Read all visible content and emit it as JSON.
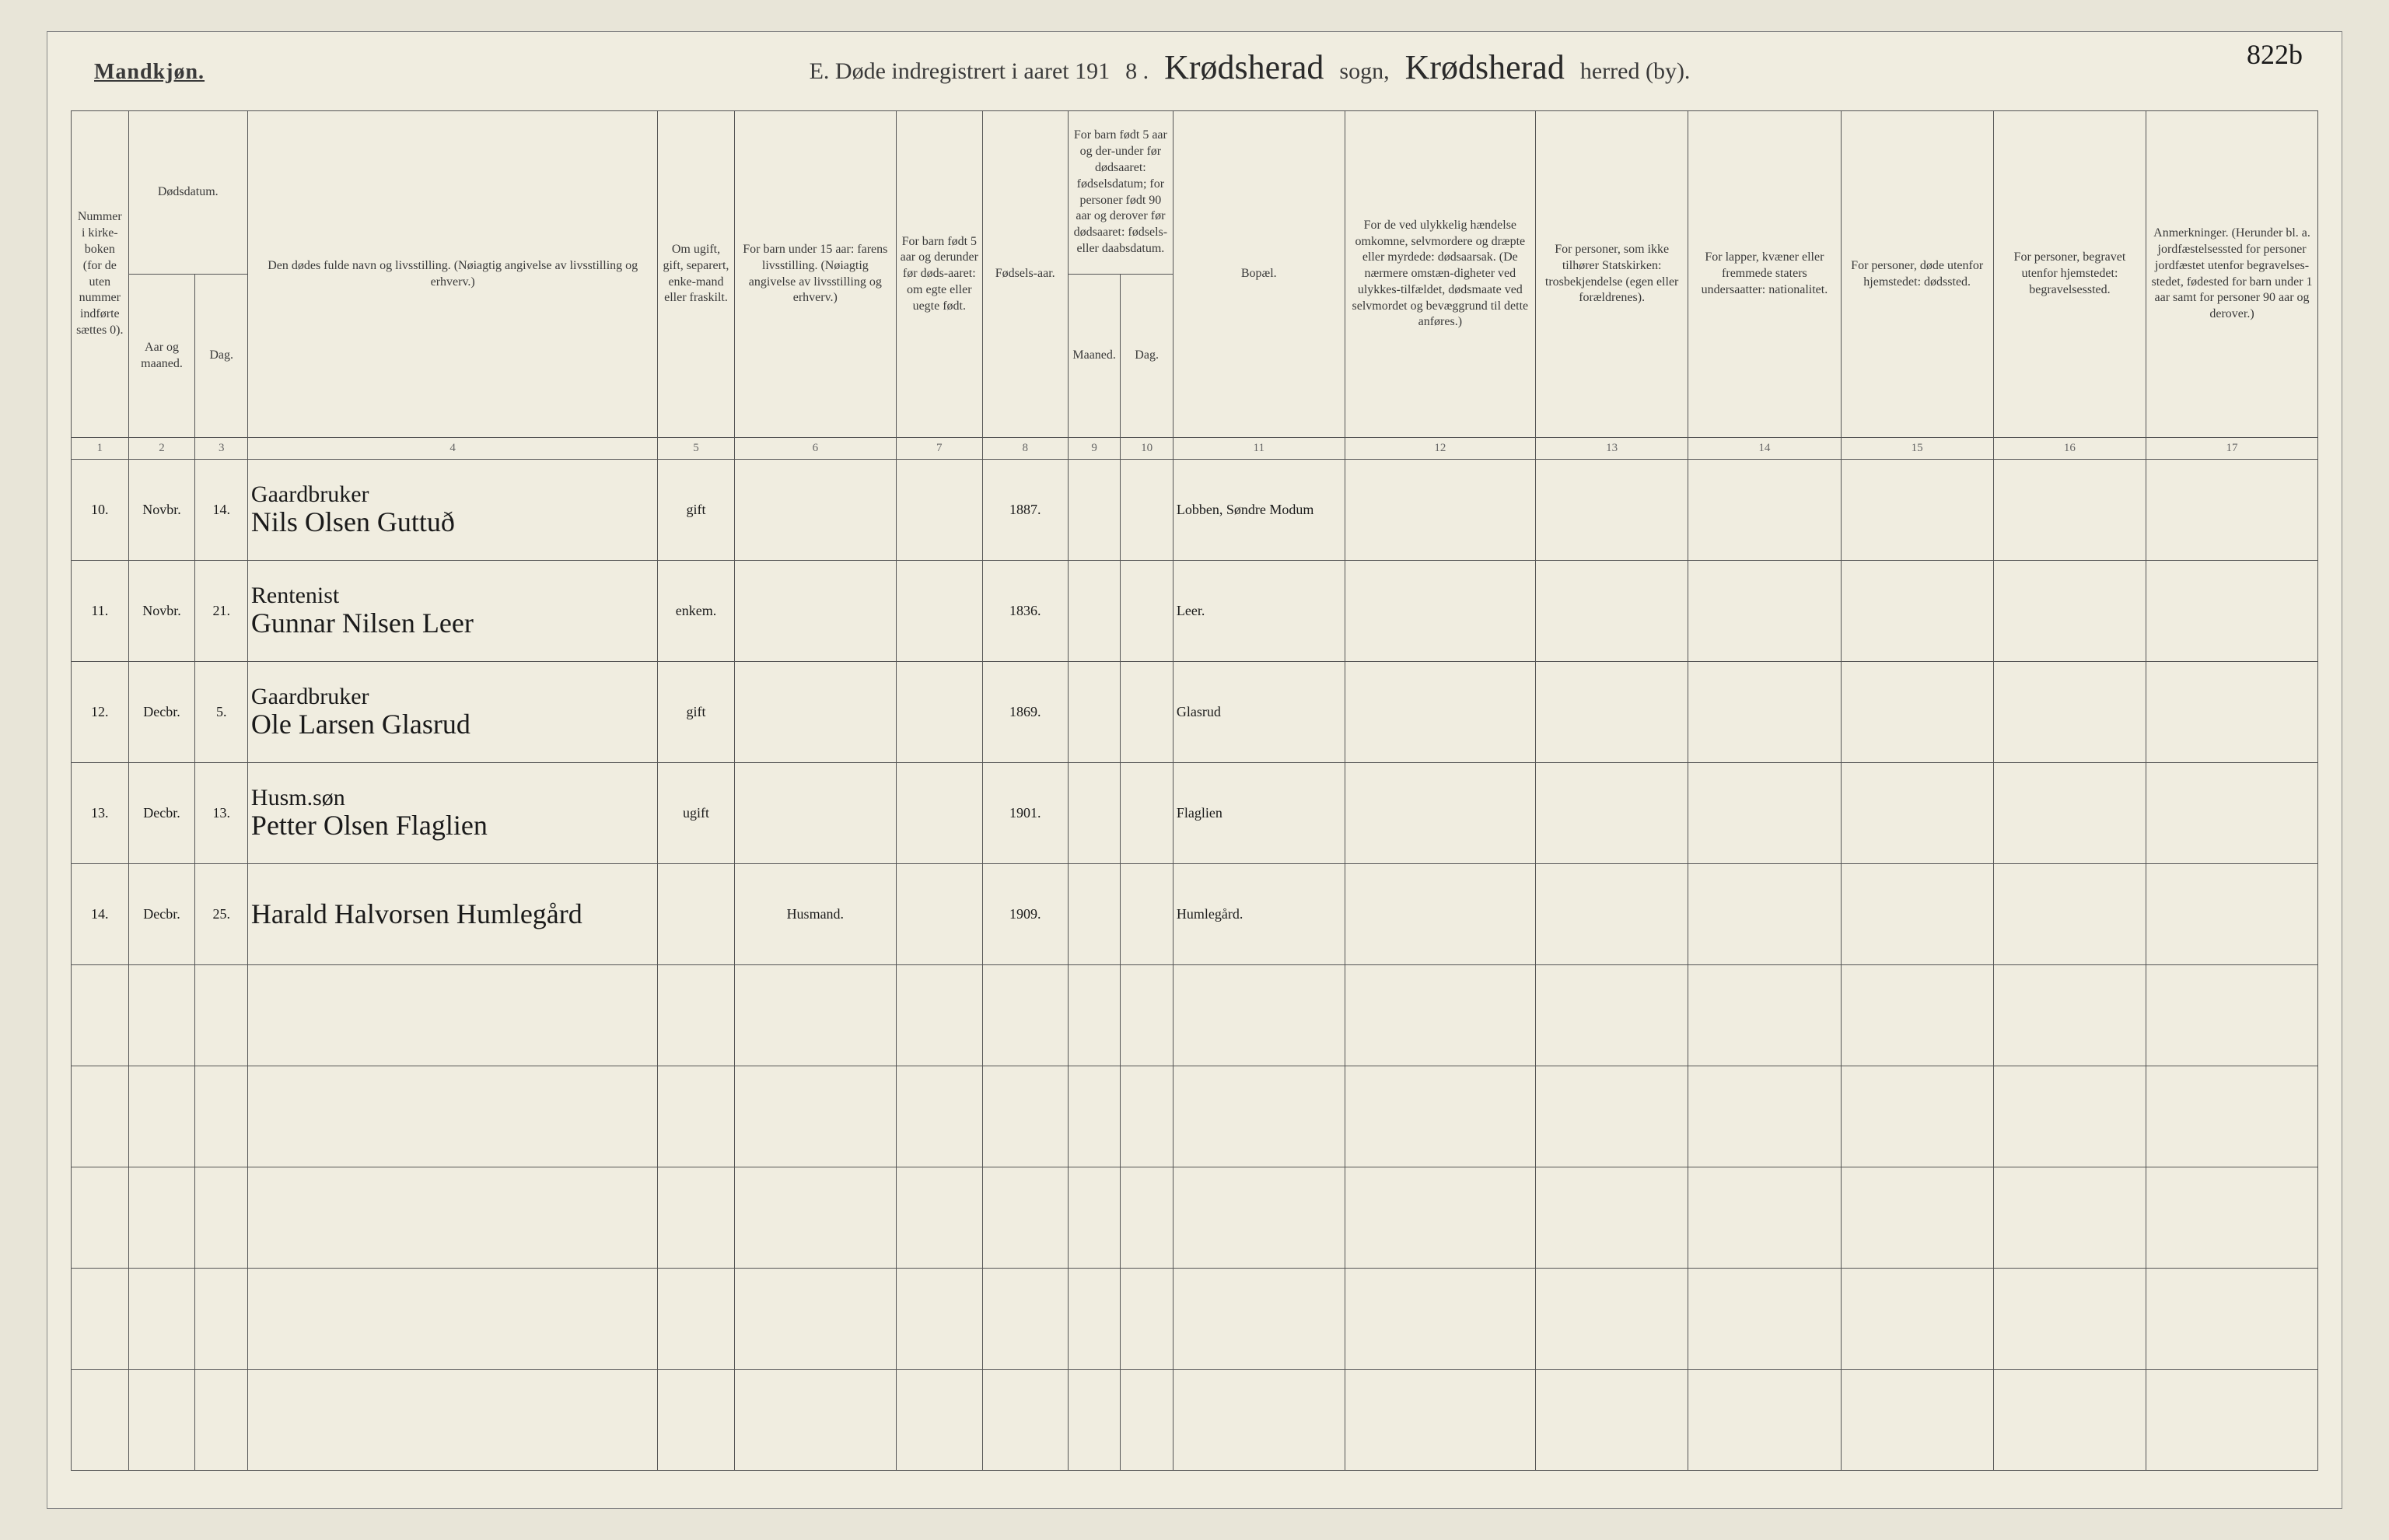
{
  "header": {
    "gender": "Mandkjøn.",
    "title_prefix": "E.  Døde indregistrert i aaret 191",
    "year_suffix": "8 .",
    "parish_script": "Krødsherad",
    "sogn_label": "sogn,",
    "district_script": "Krødsherad",
    "herred_label": "herred (by).",
    "page_number": "822b"
  },
  "columns": {
    "c1": "Nummer i kirke-boken (for de uten nummer indførte sættes 0).",
    "c2_top": "Dødsdatum.",
    "c2": "Aar og maaned.",
    "c3": "Dag.",
    "c4": "Den dødes fulde navn og livsstilling.\n(Nøiagtig angivelse av livsstilling og erhverv.)",
    "c5": "Om ugift, gift, separert, enke-mand eller fraskilt.",
    "c6": "For barn under 15 aar:\nfarens livsstilling.\n(Nøiagtig angivelse av livsstilling og erhverv.)",
    "c7": "For barn født 5 aar og derunder før døds-aaret: om egte eller uegte født.",
    "c8": "Fødsels-aar.",
    "c9_top": "For barn født 5 aar og der-under før dødsaaret: fødselsdatum; for personer født 90 aar og derover før dødsaaret: fødsels- eller daabsdatum.",
    "c9": "Maaned.",
    "c10": "Dag.",
    "c11": "Bopæl.",
    "c12": "For de ved ulykkelig hændelse omkomne, selvmordere og dræpte eller myrdede: dødsaarsak.\n(De nærmere omstæn-digheter ved ulykkes-tilfældet, dødsmaate ved selvmordet og bevæggrund til dette anføres.)",
    "c13": "For personer, som ikke tilhører Statskirken: trosbekjendelse (egen eller forældrenes).",
    "c14": "For lapper, kvæner eller fremmede staters undersaatter: nationalitet.",
    "c15": "For personer, døde utenfor hjemstedet: dødssted.",
    "c16": "For personer, begravet utenfor hjemstedet: begravelsessted.",
    "c17": "Anmerkninger.\n(Herunder bl. a. jordfæstelsessted for personer jordfæstet utenfor begravelses-stedet, fødested for barn under 1 aar samt for personer 90 aar og derover.)"
  },
  "colnums": [
    "1",
    "2",
    "3",
    "4",
    "5",
    "6",
    "7",
    "8",
    "9",
    "10",
    "11",
    "12",
    "13",
    "14",
    "15",
    "16",
    "17"
  ],
  "rows": [
    {
      "num": "10.",
      "month": "Novbr.",
      "day": "14.",
      "name_top": "Gaardbruker",
      "name": "Nils Olsen Guttuð",
      "status": "gift",
      "parent": "",
      "legit": "",
      "birthyear": "1887.",
      "bmonth": "",
      "bday": "",
      "residence": "Lobben, Søndre Modum"
    },
    {
      "num": "11.",
      "month": "Novbr.",
      "day": "21.",
      "name_top": "Rentenist",
      "name": "Gunnar Nilsen Leer",
      "status": "enkem.",
      "parent": "",
      "legit": "",
      "birthyear": "1836.",
      "bmonth": "",
      "bday": "",
      "residence": "Leer."
    },
    {
      "num": "12.",
      "month": "Decbr.",
      "day": "5.",
      "name_top": "Gaardbruker",
      "name": "Ole Larsen Glasrud",
      "status": "gift",
      "parent": "",
      "legit": "",
      "birthyear": "1869.",
      "bmonth": "",
      "bday": "",
      "residence": "Glasrud"
    },
    {
      "num": "13.",
      "month": "Decbr.",
      "day": "13.",
      "name_top": "Husm.søn",
      "name": "Petter Olsen Flaglien",
      "status": "ugift",
      "parent": "",
      "legit": "",
      "birthyear": "1901.",
      "bmonth": "",
      "bday": "",
      "residence": "Flaglien"
    },
    {
      "num": "14.",
      "month": "Decbr.",
      "day": "25.",
      "name_top": "",
      "name": "Harald Halvorsen Humlegård",
      "status": "",
      "parent": "Husmand.",
      "legit": "",
      "birthyear": "1909.",
      "bmonth": "",
      "bday": "",
      "residence": "Humlegård."
    }
  ]
}
